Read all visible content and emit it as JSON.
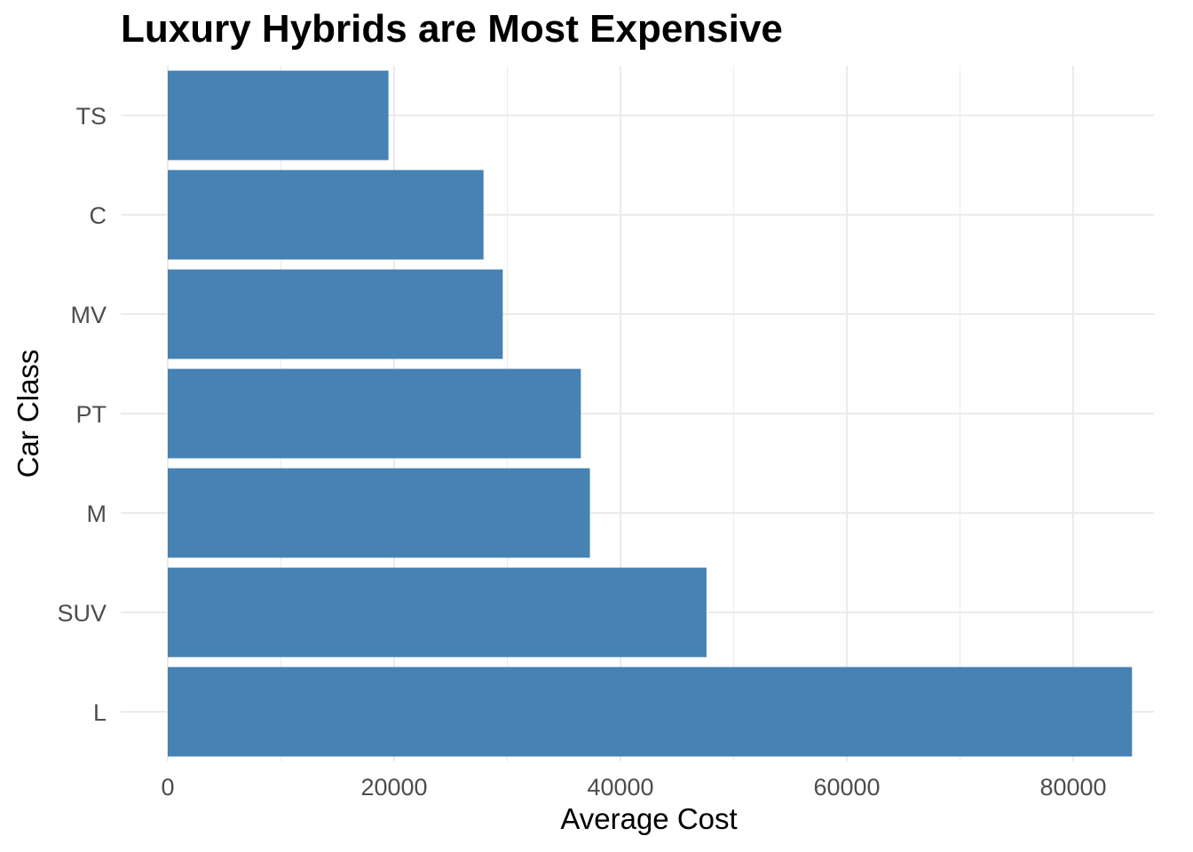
{
  "chart_data": {
    "type": "bar",
    "orientation": "horizontal",
    "title": "Luxury Hybrids are Most Expensive",
    "xlabel": "Average Cost",
    "ylabel": "Car Class",
    "categories": [
      "L",
      "SUV",
      "M",
      "PT",
      "MV",
      "C",
      "TS"
    ],
    "values": [
      85200,
      47600,
      37300,
      36500,
      29600,
      27900,
      19500
    ],
    "xlim": [
      0,
      88000
    ],
    "x_ticks": [
      0,
      20000,
      40000,
      60000,
      80000
    ],
    "x_tick_labels": [
      "0",
      "20000",
      "40000",
      "60000",
      "80000"
    ],
    "grid": true,
    "bar_color": "#4682b4",
    "grid_color": "#ebebeb"
  }
}
